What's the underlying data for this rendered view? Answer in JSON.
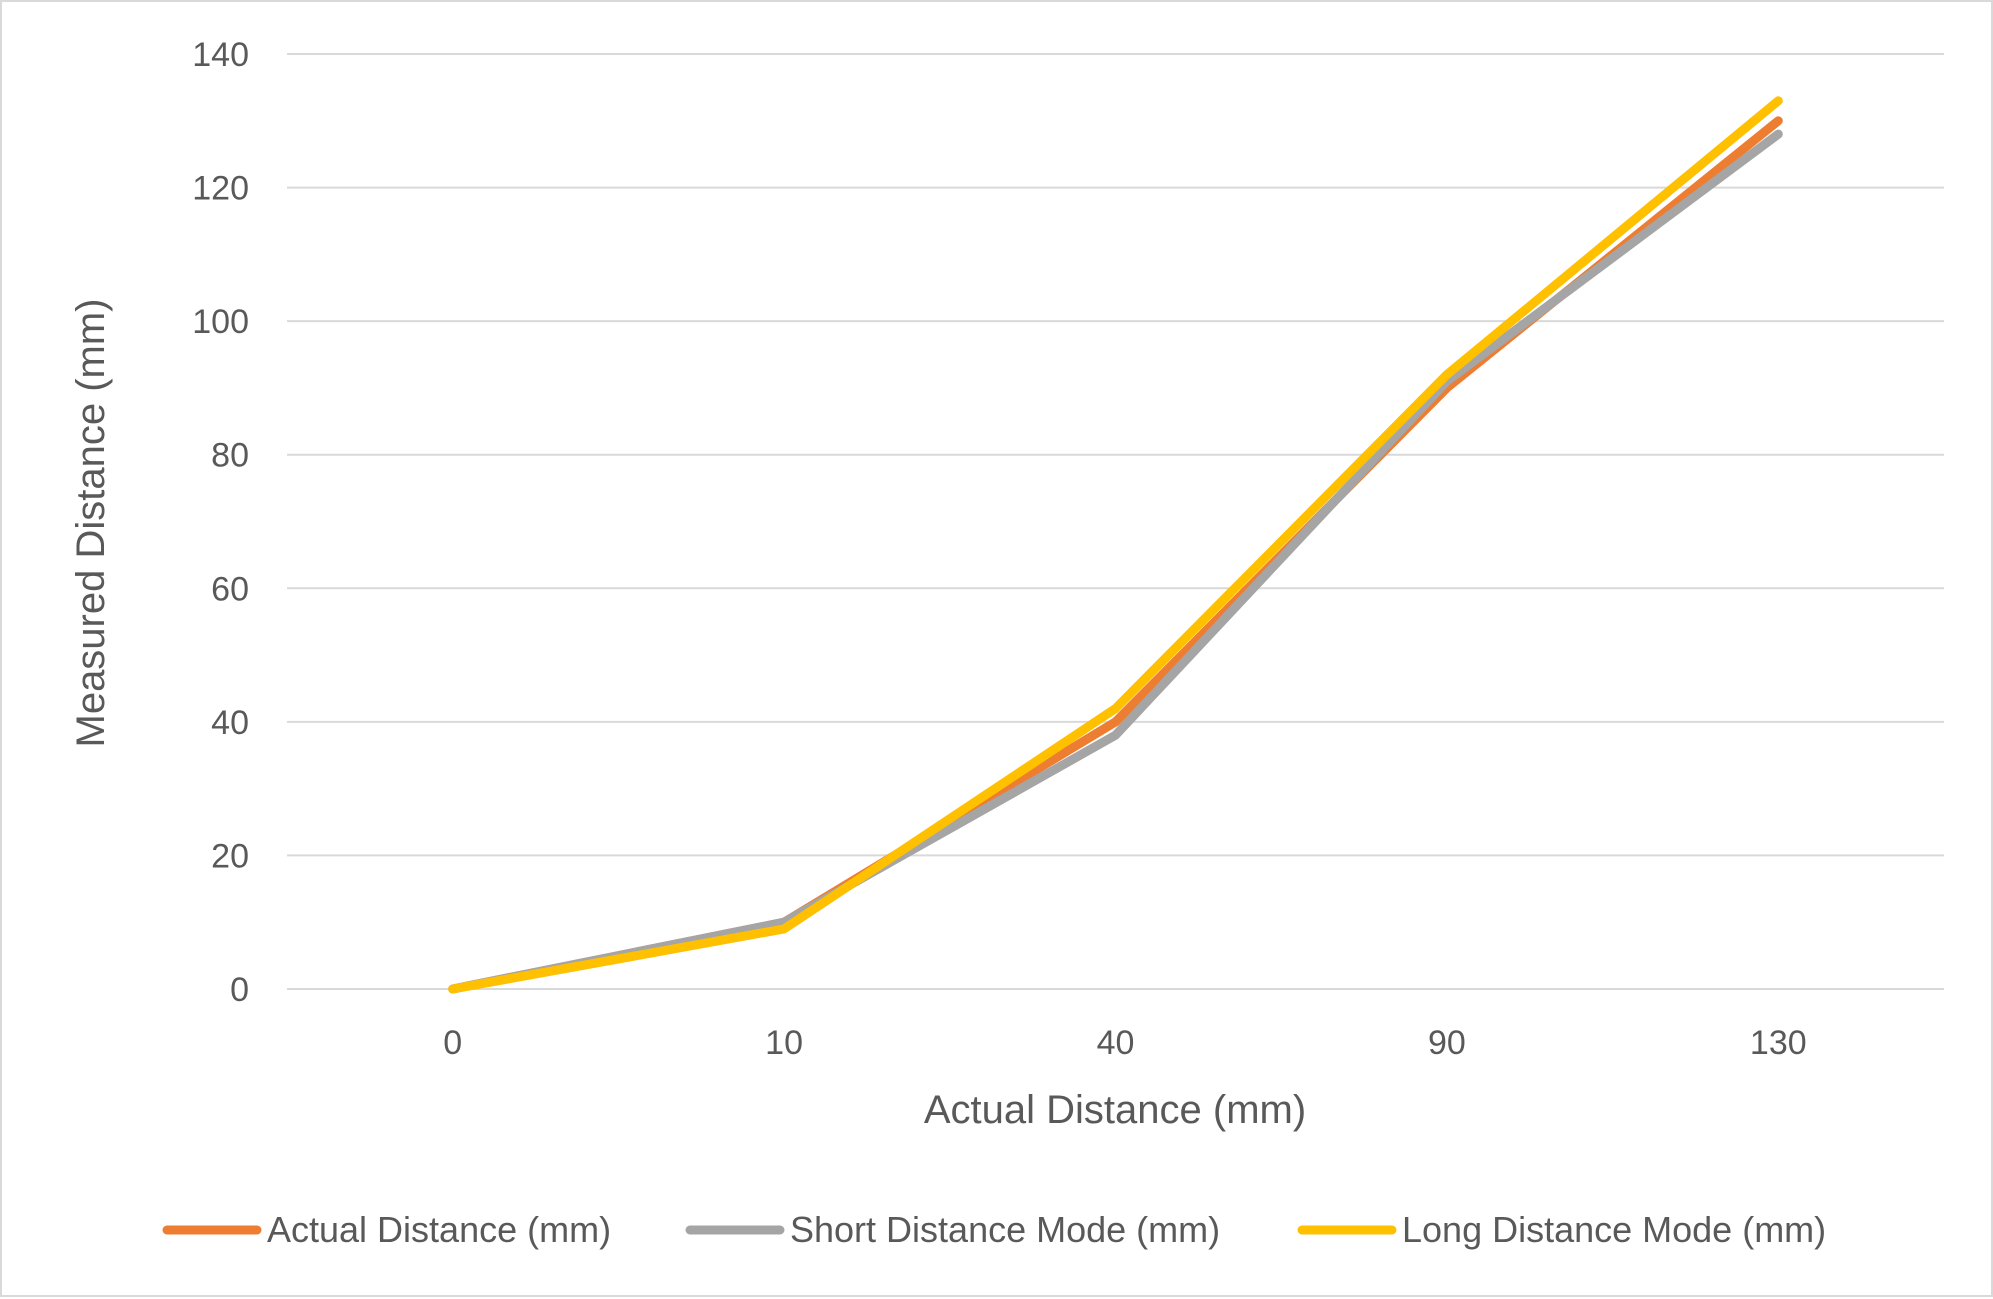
{
  "chart_data": {
    "type": "line",
    "title": "",
    "xlabel": "Actual Distance (mm)",
    "ylabel": "Measured Distance (mm)",
    "categories": [
      "0",
      "10",
      "40",
      "90",
      "130"
    ],
    "ylim": [
      0,
      140
    ],
    "yticks": [
      0,
      20,
      40,
      60,
      80,
      100,
      120,
      140
    ],
    "grid": "horizontal",
    "legend_position": "bottom",
    "series": [
      {
        "name": "Actual Distance (mm)",
        "color": "#ED7D31",
        "values": [
          0,
          10,
          40,
          90,
          130
        ]
      },
      {
        "name": "Short Distance Mode (mm)",
        "color": "#A5A5A5",
        "values": [
          0,
          10,
          38,
          91,
          128
        ]
      },
      {
        "name": "Long Distance Mode (mm)",
        "color": "#FFC000",
        "values": [
          0,
          9,
          42,
          92,
          133
        ]
      }
    ]
  }
}
